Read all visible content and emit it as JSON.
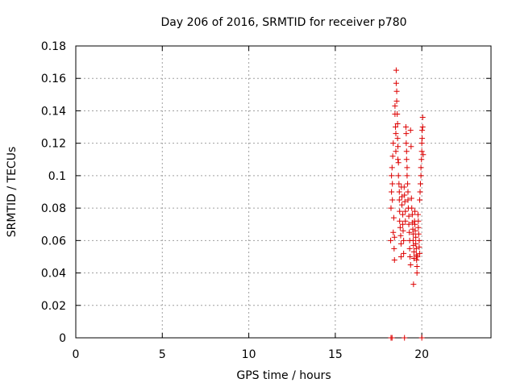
{
  "chart_data": {
    "type": "scatter",
    "title": "Day 206 of 2016, SRMTID for receiver p780",
    "xlabel": "GPS time / hours",
    "ylabel": "SRMTID / TECUs",
    "xlim": [
      0,
      24
    ],
    "ylim": [
      0,
      0.18
    ],
    "xticks": [
      0,
      5,
      10,
      15,
      20
    ],
    "xtick_labels": [
      "0",
      "5",
      "10",
      "15",
      "20"
    ],
    "yticks": [
      0,
      0.02,
      0.04,
      0.06,
      0.08,
      0.1,
      0.12,
      0.14,
      0.16,
      0.18
    ],
    "ytick_labels": [
      "0",
      "0.02",
      "0.04",
      "0.06",
      "0.08",
      "0.1",
      "0.12",
      "0.14",
      "0.16",
      "0.18"
    ],
    "grid": true,
    "marker": "+",
    "series": [
      {
        "color": "#dd0000",
        "points": [
          [
            18.22,
            0
          ],
          [
            18.28,
            0
          ],
          [
            19.0,
            0
          ],
          [
            20.0,
            0
          ],
          [
            18.2,
            0.06
          ],
          [
            18.22,
            0.08
          ],
          [
            18.25,
            0.09
          ],
          [
            18.25,
            0.1
          ],
          [
            18.28,
            0.105
          ],
          [
            18.3,
            0.095
          ],
          [
            18.3,
            0.085
          ],
          [
            18.32,
            0.112
          ],
          [
            18.35,
            0.12
          ],
          [
            18.35,
            0.065
          ],
          [
            18.38,
            0.074
          ],
          [
            18.4,
            0.055
          ],
          [
            18.42,
            0.048
          ],
          [
            18.42,
            0.062
          ],
          [
            18.45,
            0.138
          ],
          [
            18.45,
            0.143
          ],
          [
            18.48,
            0.13
          ],
          [
            18.5,
            0.126
          ],
          [
            18.5,
            0.115
          ],
          [
            18.52,
            0.165
          ],
          [
            18.52,
            0.157
          ],
          [
            18.55,
            0.152
          ],
          [
            18.55,
            0.146
          ],
          [
            18.58,
            0.138
          ],
          [
            18.6,
            0.132
          ],
          [
            18.6,
            0.123
          ],
          [
            18.62,
            0.118
          ],
          [
            18.62,
            0.11
          ],
          [
            18.65,
            0.108
          ],
          [
            18.65,
            0.1
          ],
          [
            18.68,
            0.095
          ],
          [
            18.7,
            0.09
          ],
          [
            18.7,
            0.085
          ],
          [
            18.72,
            0.078
          ],
          [
            18.72,
            0.072
          ],
          [
            18.75,
            0.068
          ],
          [
            18.78,
            0.063
          ],
          [
            18.8,
            0.058
          ],
          [
            18.8,
            0.05
          ],
          [
            18.82,
            0.093
          ],
          [
            18.85,
            0.087
          ],
          [
            18.85,
            0.082
          ],
          [
            18.9,
            0.076
          ],
          [
            18.9,
            0.07
          ],
          [
            18.92,
            0.066
          ],
          [
            18.95,
            0.06
          ],
          [
            18.95,
            0.052
          ],
          [
            18.98,
            0.093
          ],
          [
            19.0,
            0.088
          ],
          [
            19.02,
            0.084
          ],
          [
            19.05,
            0.078
          ],
          [
            19.05,
            0.072
          ],
          [
            19.08,
            0.13
          ],
          [
            19.1,
            0.126
          ],
          [
            19.1,
            0.12
          ],
          [
            19.12,
            0.115
          ],
          [
            19.12,
            0.11
          ],
          [
            19.15,
            0.105
          ],
          [
            19.15,
            0.1
          ],
          [
            19.18,
            0.095
          ],
          [
            19.2,
            0.09
          ],
          [
            19.2,
            0.085
          ],
          [
            19.22,
            0.08
          ],
          [
            19.25,
            0.075
          ],
          [
            19.25,
            0.07
          ],
          [
            19.28,
            0.065
          ],
          [
            19.3,
            0.06
          ],
          [
            19.3,
            0.055
          ],
          [
            19.32,
            0.05
          ],
          [
            19.35,
            0.045
          ],
          [
            19.35,
            0.128
          ],
          [
            19.38,
            0.118
          ],
          [
            19.4,
            0.086
          ],
          [
            19.42,
            0.08
          ],
          [
            19.45,
            0.076
          ],
          [
            19.45,
            0.071
          ],
          [
            19.48,
            0.067
          ],
          [
            19.5,
            0.064
          ],
          [
            19.5,
            0.06
          ],
          [
            19.52,
            0.057
          ],
          [
            19.52,
            0.033
          ],
          [
            19.55,
            0.053
          ],
          [
            19.55,
            0.049
          ],
          [
            19.58,
            0.072
          ],
          [
            19.6,
            0.078
          ],
          [
            19.6,
            0.07
          ],
          [
            19.62,
            0.066
          ],
          [
            19.65,
            0.062
          ],
          [
            19.65,
            0.058
          ],
          [
            19.68,
            0.055
          ],
          [
            19.68,
            0.051
          ],
          [
            19.7,
            0.048
          ],
          [
            19.72,
            0.044
          ],
          [
            19.72,
            0.04
          ],
          [
            19.75,
            0.05
          ],
          [
            19.78,
            0.076
          ],
          [
            19.8,
            0.072
          ],
          [
            19.8,
            0.068
          ],
          [
            19.82,
            0.064
          ],
          [
            19.85,
            0.06
          ],
          [
            19.85,
            0.056
          ],
          [
            19.88,
            0.052
          ],
          [
            19.88,
            0.085
          ],
          [
            19.9,
            0.09
          ],
          [
            19.92,
            0.095
          ],
          [
            19.95,
            0.1
          ],
          [
            19.95,
            0.105
          ],
          [
            19.98,
            0.11
          ],
          [
            20.0,
            0.115
          ],
          [
            20.0,
            0.12
          ],
          [
            20.02,
            0.123
          ],
          [
            20.02,
            0.128
          ],
          [
            20.05,
            0.136
          ],
          [
            20.05,
            0.13
          ],
          [
            20.08,
            0.113
          ]
        ]
      }
    ]
  }
}
